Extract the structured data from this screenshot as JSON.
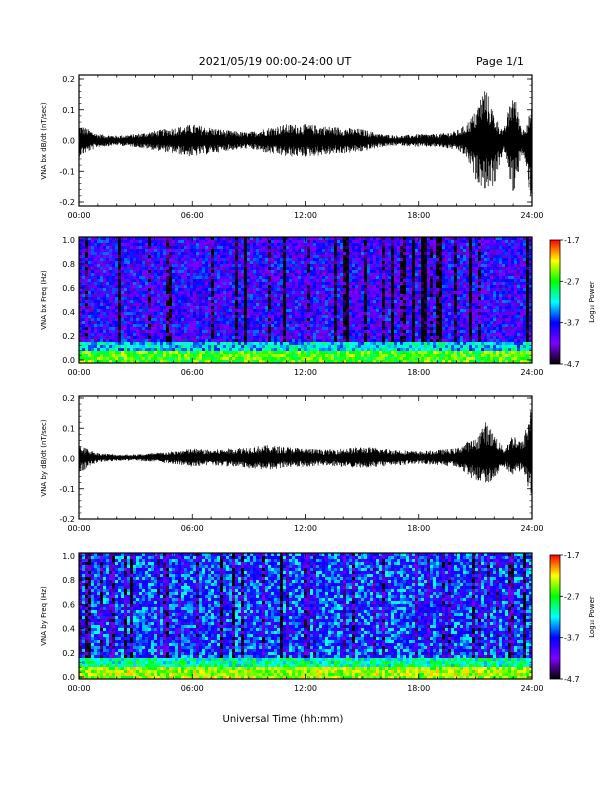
{
  "header": {
    "title": "2021/05/19  00:00-24:00 UT",
    "page": "Page 1/1"
  },
  "xaxis": {
    "title": "Universal Time (hh:mm)",
    "ticks": [
      "00:00",
      "06:00",
      "12:00",
      "18:00",
      "24:00"
    ]
  },
  "colorbar": {
    "label": "Log₁₀ Power",
    "ticks": [
      "-1.7",
      "-2.7",
      "-3.7",
      "-4.7"
    ],
    "colors": [
      "#000000",
      "#7f00ff",
      "#0000ff",
      "#00ffff",
      "#00ff00",
      "#ffff00",
      "#ff0000"
    ]
  },
  "panels": {
    "bx_wave": {
      "ylabel": "VNA bx dB/dt (nT/sec)",
      "yticks": [
        "0.2",
        "0.1",
        "0.0",
        "-0.1",
        "-0.2"
      ]
    },
    "bx_spec": {
      "ylabel": "VNA bx Freq (Hz)",
      "yticks": [
        "1.0",
        "0.8",
        "0.6",
        "0.4",
        "0.2",
        "0.0"
      ]
    },
    "by_wave": {
      "ylabel": "VNA by dB/dt (nT/sec)",
      "yticks": [
        "0.2",
        "0.1",
        "0.0",
        "-0.1",
        "-0.2"
      ]
    },
    "by_spec": {
      "ylabel": "VNA by Freq (Hz)",
      "yticks": [
        "1.0",
        "0.8",
        "0.6",
        "0.4",
        "0.2",
        "0.0"
      ]
    }
  },
  "chart_data": [
    {
      "type": "line",
      "name": "VNA bx dB/dt",
      "x_unit": "hours UT",
      "xlim": [
        0,
        24
      ],
      "ylim": [
        -0.2,
        0.2
      ],
      "x": [
        0,
        1,
        2,
        3,
        4,
        5,
        6,
        7,
        8,
        9,
        10,
        11,
        12,
        13,
        14,
        15,
        16,
        17,
        18,
        19,
        20,
        20.5,
        21,
        21.5,
        22,
        22.5,
        23,
        23.5,
        24
      ],
      "ymax": [
        0.05,
        0.02,
        0.015,
        0.02,
        0.03,
        0.04,
        0.05,
        0.04,
        0.03,
        0.025,
        0.04,
        0.05,
        0.05,
        0.045,
        0.04,
        0.035,
        0.02,
        0.015,
        0.02,
        0.02,
        0.03,
        0.05,
        0.09,
        0.17,
        0.08,
        0.03,
        0.16,
        0.03,
        0.1
      ],
      "ymin": [
        -0.05,
        -0.02,
        -0.015,
        -0.02,
        -0.03,
        -0.04,
        -0.05,
        -0.04,
        -0.03,
        -0.025,
        -0.04,
        -0.05,
        -0.05,
        -0.045,
        -0.04,
        -0.035,
        -0.02,
        -0.015,
        -0.02,
        -0.02,
        -0.03,
        -0.05,
        -0.12,
        -0.15,
        -0.14,
        -0.03,
        -0.17,
        -0.04,
        -0.2
      ]
    },
    {
      "type": "heatmap",
      "name": "VNA bx Freq",
      "x_unit": "hours UT",
      "y_unit": "Hz",
      "xlim": [
        0,
        24
      ],
      "ylim": [
        0,
        1
      ],
      "zlim": [
        -4.7,
        -1.7
      ],
      "z_background": -3.9,
      "z_low_freq_band": -2.6
    },
    {
      "type": "line",
      "name": "VNA by dB/dt",
      "x_unit": "hours UT",
      "xlim": [
        0,
        24
      ],
      "ylim": [
        -0.2,
        0.2
      ],
      "x": [
        0,
        1,
        2,
        3,
        4,
        5,
        6,
        7,
        8,
        9,
        10,
        11,
        12,
        13,
        14,
        15,
        16,
        17,
        18,
        19,
        20,
        20.5,
        21,
        21.5,
        22,
        22.5,
        23,
        23.5,
        24
      ],
      "ymax": [
        0.04,
        0.015,
        0.01,
        0.01,
        0.015,
        0.02,
        0.03,
        0.025,
        0.03,
        0.035,
        0.04,
        0.035,
        0.03,
        0.025,
        0.03,
        0.035,
        0.03,
        0.025,
        0.02,
        0.025,
        0.03,
        0.05,
        0.06,
        0.12,
        0.08,
        0.03,
        0.08,
        0.05,
        0.19
      ],
      "ymin": [
        -0.05,
        -0.015,
        -0.01,
        -0.01,
        -0.015,
        -0.02,
        -0.03,
        -0.025,
        -0.03,
        -0.035,
        -0.04,
        -0.035,
        -0.03,
        -0.025,
        -0.03,
        -0.035,
        -0.03,
        -0.025,
        -0.02,
        -0.025,
        -0.03,
        -0.05,
        -0.08,
        -0.09,
        -0.07,
        -0.03,
        -0.06,
        -0.04,
        -0.15
      ]
    },
    {
      "type": "heatmap",
      "name": "VNA by Freq",
      "x_unit": "hours UT",
      "y_unit": "Hz",
      "xlim": [
        0,
        24
      ],
      "ylim": [
        0,
        1
      ],
      "zlim": [
        -4.7,
        -1.7
      ],
      "z_background": -3.6,
      "z_low_freq_band": -2.4
    }
  ]
}
